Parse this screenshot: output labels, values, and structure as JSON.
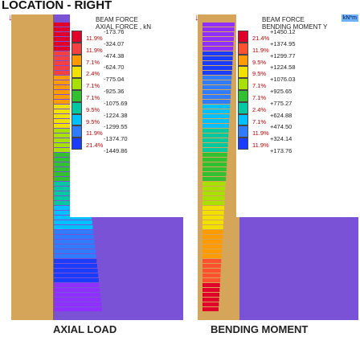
{
  "title": "LOCATION - RIGHT",
  "left": {
    "legend_title": "BEAM FORCE\nAXIAL FORCE , kN",
    "values": [
      "-173.76",
      "-324.07",
      "-474.38",
      "-624.70",
      "-775.04",
      "-925.36",
      "-1075.69",
      "-1224.38",
      "-1299.55",
      "-1374.70",
      "-1449.86"
    ],
    "percents": [
      "11.9%",
      "11.9%",
      "7.1%",
      "2.4%",
      "7.1%",
      "7.1%",
      "9.5%",
      "9.5%",
      "11.9%",
      "21.4%"
    ],
    "colors": [
      "#e0002a",
      "#f44040",
      "#ff9a00",
      "#f1e000",
      "#a8e000",
      "#30c030",
      "#00c8a0",
      "#00c0ff",
      "#2f7cff",
      "#1a3cff",
      "#9030ff"
    ],
    "caption": "AXIAL LOAD"
  },
  "right": {
    "legend_title": "BEAM FORCE\nBENDING MOMENT Y",
    "unit": "kN*m",
    "values": [
      "+1450.12",
      "+1374.95",
      "+1299.77",
      "+1224.58",
      "+1076.03",
      "+925.65",
      "+775.27",
      "+624.88",
      "+474.50",
      "+324.14",
      "+173.76"
    ],
    "percents": [
      "21.4%",
      "11.9%",
      "9.5%",
      "9.5%",
      "7.1%",
      "7.1%",
      "2.4%",
      "7.1%",
      "11.9%",
      "11.9%"
    ],
    "colors": [
      "#e0002a",
      "#ff5030",
      "#ff9a00",
      "#f1e000",
      "#a8e000",
      "#30c030",
      "#00c8a0",
      "#00c0ff",
      "#2f7cff",
      "#1a3cff",
      "#9030ff"
    ],
    "caption": "BENDING MOMENT"
  }
}
